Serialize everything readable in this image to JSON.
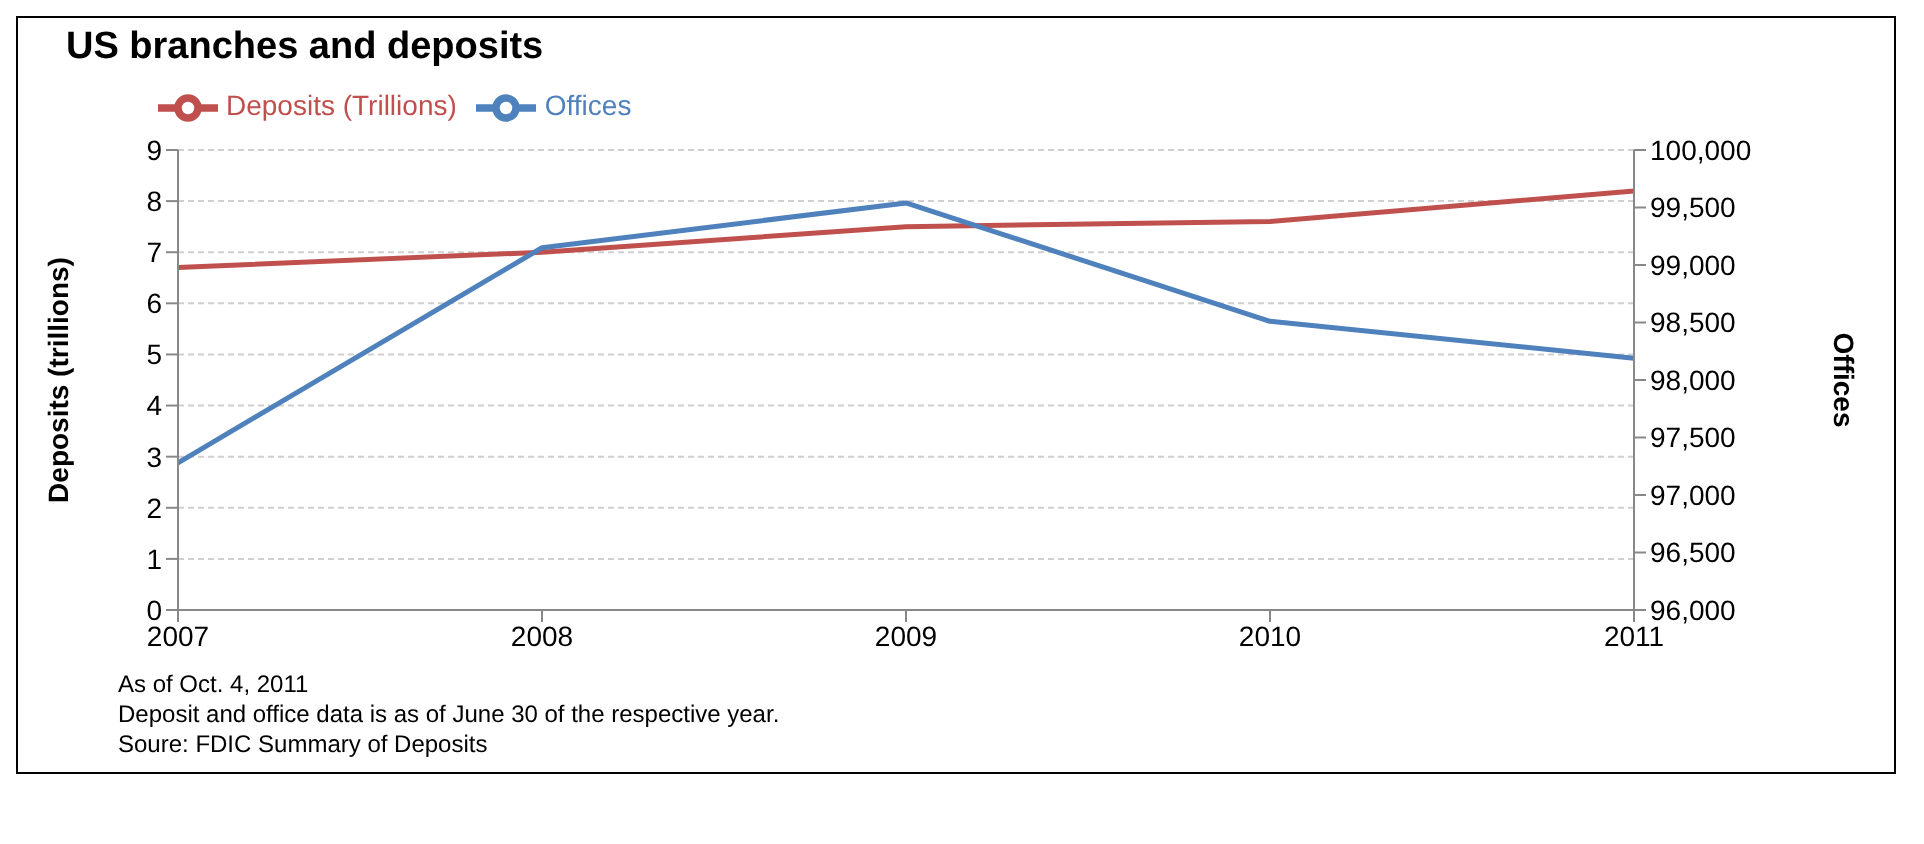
{
  "chart_data": {
    "type": "line",
    "title": "US branches and deposits",
    "ylabel": "Deposits (trillions)",
    "y2label": "Offices",
    "categories": [
      "2007",
      "2008",
      "2009",
      "2010",
      "2011"
    ],
    "series": [
      {
        "name": "Deposits (Trillions)",
        "color": "#c0504d",
        "values": [
          6.7,
          7.0,
          7.5,
          7.6,
          8.2
        ]
      },
      {
        "name": "Offices",
        "color": "#4f81bd",
        "axis": "y2",
        "values": [
          97280,
          99150,
          99540,
          98510,
          98190
        ]
      }
    ],
    "ylim": [
      0,
      9
    ],
    "yticks": [
      0,
      1,
      2,
      3,
      4,
      5,
      6,
      7,
      8,
      9
    ],
    "y2lim": [
      96000,
      100000
    ],
    "y2ticks": [
      {
        "value": 96000,
        "label": "96,000"
      },
      {
        "value": 96500,
        "label": "96,500"
      },
      {
        "value": 97000,
        "label": "97,000"
      },
      {
        "value": 97500,
        "label": "97,500"
      },
      {
        "value": 98000,
        "label": "98,000"
      },
      {
        "value": 98500,
        "label": "98,500"
      },
      {
        "value": 99000,
        "label": "99,000"
      },
      {
        "value": 99500,
        "label": "99,500"
      },
      {
        "value": 100000,
        "label": "100,000"
      }
    ],
    "grid": "y",
    "legend": "top left",
    "marker": "none",
    "line_style": "solid",
    "annotations": [
      "As of Oct. 4, 2011",
      "Deposit and office data is as of June 30 of the respective year.",
      "Soure: FDIC Summary of Deposits"
    ]
  }
}
